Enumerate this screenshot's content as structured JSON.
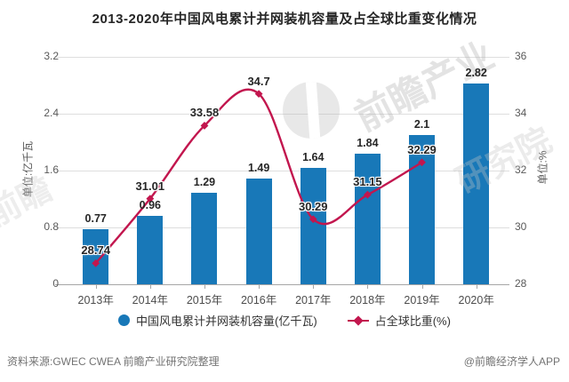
{
  "title": "2013-2020年中国风电累计并网装机容量及占全球比重变化情况",
  "chart_data": {
    "type": "combo-bar-line",
    "categories": [
      "2013年",
      "2014年",
      "2015年",
      "2016年",
      "2017年",
      "2018年",
      "2019年",
      "2020年"
    ],
    "series": [
      {
        "name": "中国风电累计并网装机容量(亿千瓦)",
        "type": "bar",
        "axis": "left",
        "color": "#1878B8",
        "values": [
          0.77,
          0.96,
          1.29,
          1.49,
          1.64,
          1.84,
          2.1,
          2.82
        ],
        "labels": [
          "0.77",
          "0.96",
          "1.29",
          "1.49",
          "1.64",
          "1.84",
          "2.1",
          "2.82"
        ]
      },
      {
        "name": "占全球比重(%)",
        "type": "line",
        "axis": "right",
        "color": "#C2164E",
        "values": [
          28.74,
          31.01,
          33.58,
          34.7,
          30.29,
          31.15,
          32.29,
          null
        ],
        "labels": [
          "28.74",
          "31.01",
          "33.58",
          "34.7",
          "30.29",
          "31.15",
          "32.29",
          ""
        ]
      }
    ],
    "left_axis": {
      "label": "单位:亿千瓦",
      "ticks": [
        "0",
        "0.8",
        "1.6",
        "2.4",
        "3.2"
      ],
      "range": [
        0,
        3.2
      ]
    },
    "right_axis": {
      "label": "单位:%",
      "ticks": [
        "28",
        "30",
        "32",
        "34",
        "36"
      ],
      "range": [
        28,
        36
      ]
    },
    "grid": true,
    "legend_position": "bottom"
  },
  "watermark": {
    "pieces": [
      "前瞻产业",
      "前瞻",
      "研究院"
    ]
  },
  "footer": {
    "source": "资料来源:GWEC CWEA 前瞻产业研究院整理",
    "credit": "@前瞻经济学人APP"
  }
}
